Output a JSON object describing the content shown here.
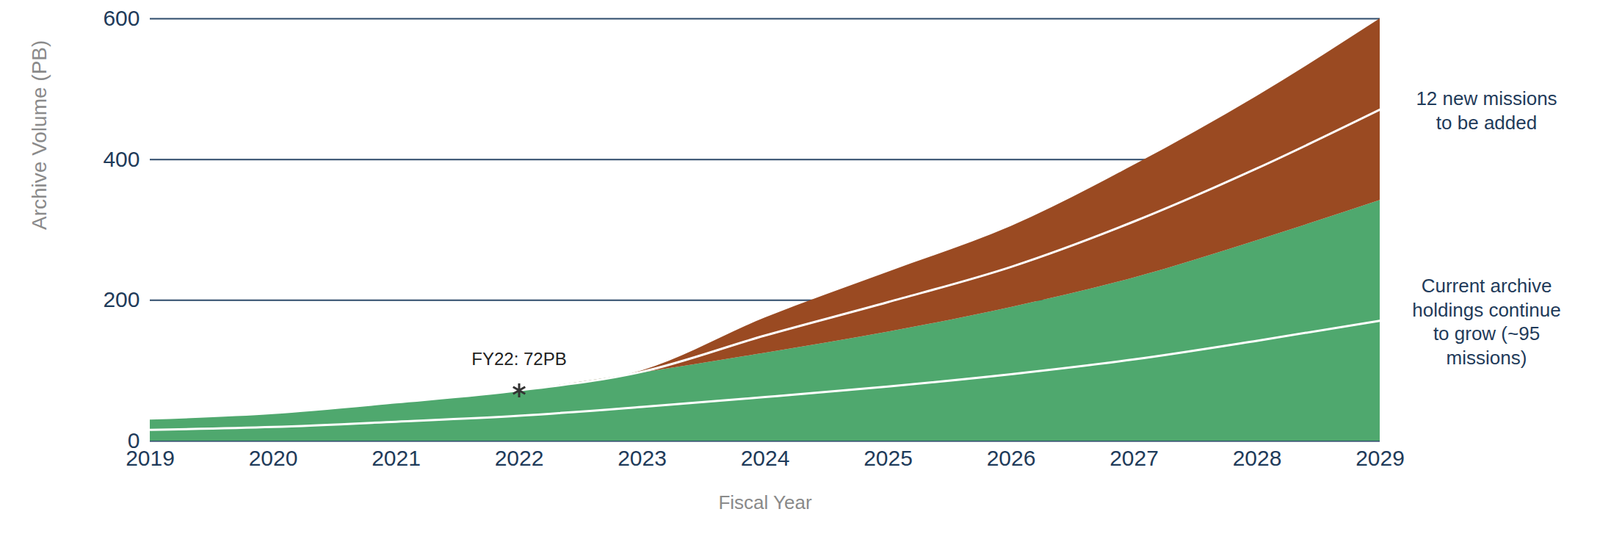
{
  "chart_data": {
    "type": "area",
    "stacked": true,
    "xlabel": "Fiscal Year",
    "ylabel": "Archive Volume (PB)",
    "x": [
      2019,
      2020,
      2021,
      2022,
      2023,
      2024,
      2025,
      2026,
      2027,
      2028,
      2029
    ],
    "series": [
      {
        "name": "Current archive holdings continue to grow (~95 missions)",
        "color": "#4fa86e",
        "values": [
          32,
          40,
          55,
          72,
          97,
          125,
          155,
          190,
          232,
          285,
          342
        ]
      },
      {
        "name": "12 new missions to be added",
        "color": "#9a4a22",
        "values": [
          0,
          0,
          0,
          0,
          3,
          50,
          85,
          115,
          160,
          205,
          258
        ]
      }
    ],
    "xlim": [
      2019,
      2029
    ],
    "xticks": [
      2019,
      2020,
      2021,
      2022,
      2023,
      2024,
      2025,
      2026,
      2027,
      2028,
      2029
    ],
    "ylim": [
      0,
      600
    ],
    "yticks": [
      0,
      200,
      400,
      600
    ],
    "grid": true,
    "legend": "right",
    "annotations": [
      {
        "text": "FY22: 72PB",
        "x": 2022,
        "y": 72,
        "marker": "asterisk"
      }
    ]
  }
}
